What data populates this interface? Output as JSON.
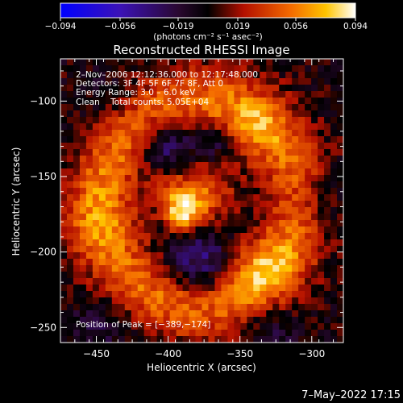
{
  "colorbar": {
    "ticks": [
      "-0.094",
      "-0.056",
      "-0.019",
      "0.019",
      "0.056",
      "0.094"
    ],
    "units": "(photons cm⁻² s⁻¹ asec⁻²)"
  },
  "chart_data": {
    "type": "heatmap",
    "title": "Reconstructed RHESSI Image",
    "xlabel": "Heliocentric X (arcsec)",
    "ylabel": "Heliocentric Y (arcsec)",
    "xlim": [
      -475,
      -278
    ],
    "ylim": [
      -260,
      -72
    ],
    "xticks": [
      -450,
      -400,
      -350,
      -300
    ],
    "xtick_labels": [
      "−450",
      "−400",
      "−350",
      "−300"
    ],
    "yticks": [
      -100,
      -150,
      -200,
      -250
    ],
    "ytick_labels": [
      "−100",
      "−150",
      "−200",
      "−250"
    ],
    "zlim": [
      -0.094,
      0.094
    ],
    "colormap": "purple-black-red-orange-yellow-white",
    "peak": [
      -389,
      -174
    ],
    "annotations": [
      "2–Nov–2006 12:12:36.000 to 12:17:48.000",
      "Detectors: 3F 4F 5F 6F 7F 8F, Att 0",
      "Energy Range: 3.0 – 6.0 keV",
      "Clean    Total counts: 5.05E+04",
      "Position of Peak = [−389,−174]"
    ],
    "components": [
      {
        "shape": "ring",
        "x": -378,
        "y": -168,
        "r": 68,
        "width": 16,
        "amp": 0.052
      },
      {
        "shape": "blob",
        "x": -390,
        "y": -174,
        "s": 9,
        "amp": 0.075
      },
      {
        "shape": "blob",
        "x": -375,
        "y": -160,
        "s": 14,
        "amp": 0.048
      },
      {
        "shape": "blob",
        "x": -402,
        "y": -157,
        "s": 10,
        "amp": 0.03
      },
      {
        "shape": "blob",
        "x": -335,
        "y": -213,
        "s": 16,
        "amp": 0.035
      },
      {
        "shape": "blob",
        "x": -338,
        "y": -115,
        "s": 14,
        "amp": 0.025
      },
      {
        "shape": "blob",
        "x": -455,
        "y": -178,
        "s": 18,
        "amp": 0.018
      },
      {
        "shape": "blob",
        "x": -400,
        "y": -128,
        "s": 13,
        "amp": -0.045
      },
      {
        "shape": "blob",
        "x": -367,
        "y": -127,
        "s": 9,
        "amp": -0.03
      },
      {
        "shape": "blob",
        "x": -378,
        "y": -207,
        "s": 15,
        "amp": -0.045
      },
      {
        "shape": "blob",
        "x": -330,
        "y": -247,
        "s": 15,
        "amp": -0.025
      },
      {
        "shape": "blob",
        "x": -300,
        "y": -165,
        "s": 15,
        "amp": -0.02
      },
      {
        "shape": "blob",
        "x": -445,
        "y": -245,
        "s": 14,
        "amp": -0.02
      },
      {
        "shape": "blob",
        "x": -440,
        "y": -100,
        "s": 14,
        "amp": -0.015
      }
    ]
  },
  "footer": {
    "date": "7–May–2022 17:15"
  }
}
